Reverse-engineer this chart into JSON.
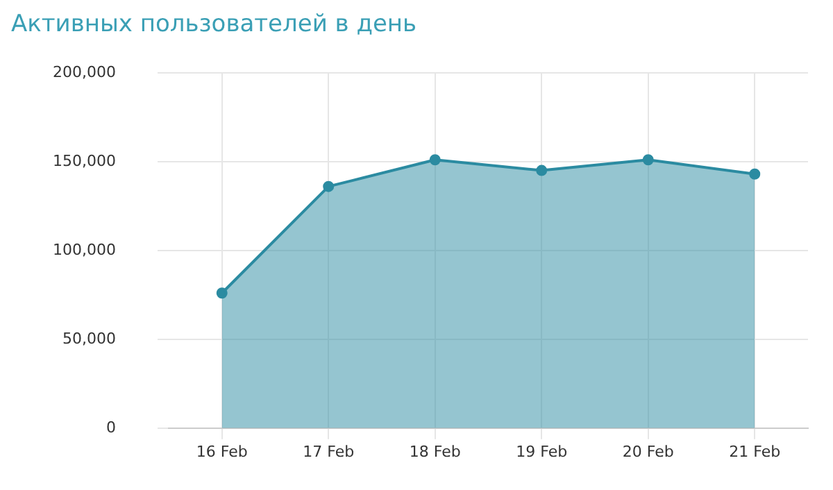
{
  "chart_data": {
    "type": "area",
    "title": "Активных пользователей в день",
    "categories": [
      "16 Feb",
      "17 Feb",
      "18 Feb",
      "19 Feb",
      "20 Feb",
      "21 Feb"
    ],
    "series": [
      {
        "color": "#2b8ba1",
        "values": [
          76000,
          136000,
          151000,
          145000,
          151000,
          143000
        ]
      }
    ],
    "ylim": [
      0,
      200000
    ],
    "yticks": [
      0,
      {
        "value": 50000,
        "label": "50,000"
      },
      {
        "value": 100000,
        "label": "100,000"
      },
      {
        "value": 150000,
        "label": "150,000"
      },
      {
        "value": 200000,
        "label": "200,000"
      }
    ],
    "grid": true,
    "marker": "circle",
    "legend": false
  }
}
